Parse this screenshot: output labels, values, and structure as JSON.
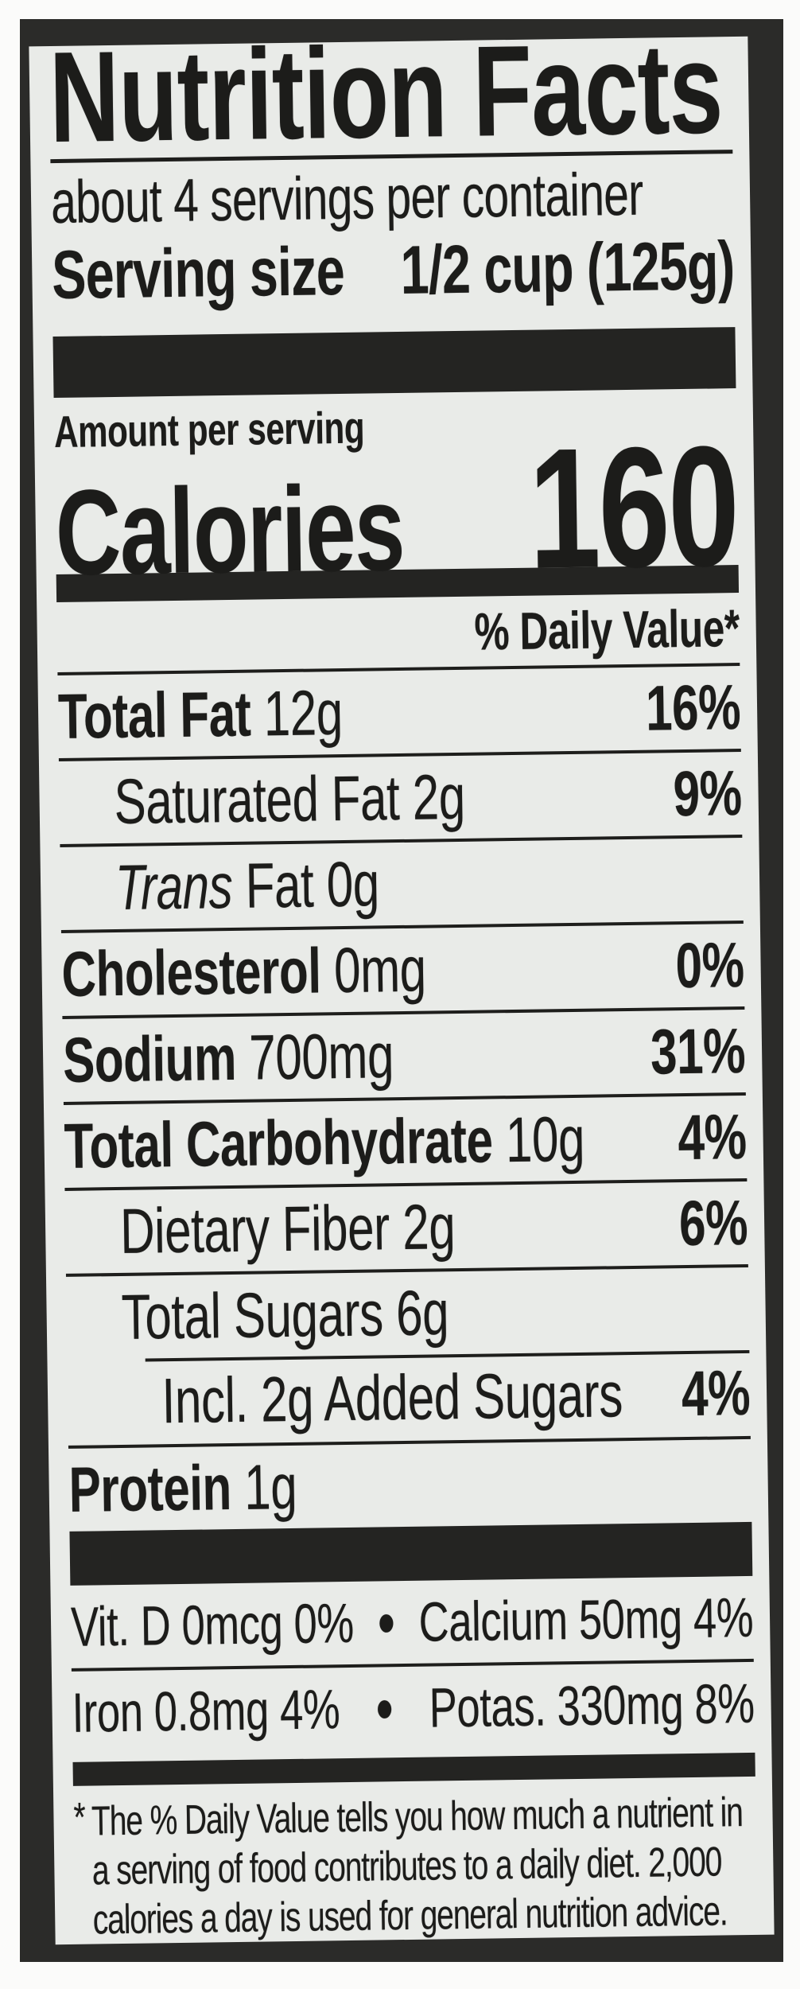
{
  "nutrition_label": {
    "title": "Nutrition Facts",
    "servings_per_container": "about 4 servings per container",
    "serving_size": {
      "label": "Serving size",
      "value": "1/2 cup (125g)"
    },
    "amount_per_serving": "Amount per serving",
    "calories": {
      "label": "Calories",
      "value": "160"
    },
    "daily_value_header": "% Daily Value*",
    "nutrients": [
      {
        "name": "Total Fat",
        "amount": "12g",
        "daily_value": "16%"
      },
      {
        "name": "Saturated Fat",
        "amount": "2g",
        "daily_value": "9%"
      },
      {
        "name_italic": "Trans",
        "name": "Fat",
        "amount": "0g",
        "daily_value": ""
      },
      {
        "name": "Cholesterol",
        "amount": "0mg",
        "daily_value": "0%"
      },
      {
        "name": "Sodium",
        "amount": "700mg",
        "daily_value": "31%"
      },
      {
        "name": "Total Carbohydrate",
        "amount": "10g",
        "daily_value": "4%"
      },
      {
        "name": "Dietary Fiber",
        "amount": "2g",
        "daily_value": "6%"
      },
      {
        "name": "Total Sugars",
        "amount": "6g",
        "daily_value": ""
      },
      {
        "name": "Incl. 2g Added Sugars",
        "amount": "",
        "daily_value": "4%"
      },
      {
        "name": "Protein",
        "amount": "1g",
        "daily_value": ""
      }
    ],
    "micronutrients": [
      {
        "left": "Vit. D 0mcg 0%",
        "separator": "•",
        "right": "Calcium 50mg 4%"
      },
      {
        "left": "Iron 0.8mg 4%",
        "separator": "•",
        "right": "Potas. 330mg 8%"
      }
    ],
    "footnote_marker": "*",
    "footnote_lines": [
      "The % Daily Value tells you how much a nutrient in",
      "a serving of food contributes to a daily diet. 2,000",
      "calories a day is used for general nutrition advice."
    ],
    "colors": {
      "ink": "#1e1e1c",
      "label_background": "#e9ebe8",
      "frame": "#2b2b29",
      "page_background": "#fbfbfa"
    }
  }
}
